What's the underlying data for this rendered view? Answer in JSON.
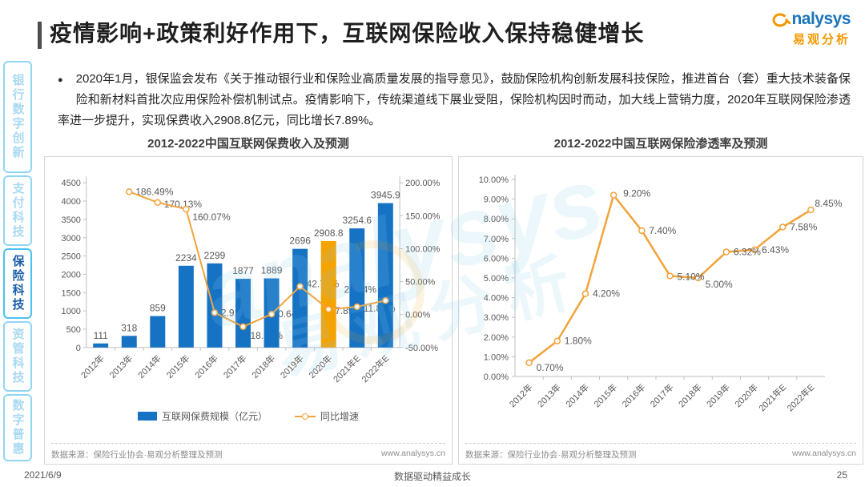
{
  "header": {
    "title": "疫情影响+政策利好作用下，互联网保险收入保持稳健增长",
    "logo": {
      "wordmark": "analysys",
      "subtext": "易观分析"
    }
  },
  "sidebar": {
    "items": [
      {
        "label": "银行数字创新",
        "active": false
      },
      {
        "label": "支付科技",
        "active": false
      },
      {
        "label": "保险科技",
        "active": true
      },
      {
        "label": "资管科技",
        "active": false
      },
      {
        "label": "数字普惠",
        "active": false
      }
    ]
  },
  "bullet": {
    "marker": "●",
    "text": "2020年1月，银保监会发布《关于推动银行业和保险业高质量发展的指导意见》，鼓励保险机构创新发展科技保险，推进首台（套）重大技术装备保险和新材料首批次应用保险补偿机制试点。疫情影响下，传统渠道线下展业受阻，保险机构因时而动，加大线上营销力度，2020年互联网保险渗透率进一步提升，实现保费收入2908.8亿元，同比增长7.89%。"
  },
  "chart_data": [
    {
      "type": "bar",
      "title": "2012-2022中国互联网保费收入及预测",
      "categories": [
        "2012年",
        "2013年",
        "2014年",
        "2015年",
        "2016年",
        "2017年",
        "2018年",
        "2019年",
        "2020年",
        "2021年E",
        "2022年E"
      ],
      "series": [
        {
          "name": "互联网保费规模（亿元）",
          "type": "bar",
          "values": [
            111,
            318,
            859,
            2234,
            2299,
            1877,
            1889,
            2696,
            2908.8,
            3254.6,
            3945.9
          ],
          "labels": [
            "111",
            "318",
            "859",
            "2234",
            "2299",
            "1877",
            "1889",
            "2696",
            "2908.8",
            "3254.6",
            "3945.9"
          ]
        },
        {
          "name": "同比增速",
          "type": "line",
          "values": [
            null,
            186.49,
            170.13,
            160.07,
            2.91,
            -18.36,
            0.64,
            42.72,
            7.89,
            11.89,
            21.24
          ],
          "labels": [
            "",
            "186.49%",
            "170.13%",
            "160.07%",
            "2.91%",
            "-18.36%",
            "0.64%",
            "42.72%",
            "7.89%",
            "11.89%",
            "21.24%"
          ]
        }
      ],
      "highlight_category": "2020年",
      "highlight_index": 8,
      "y_left": {
        "min": 0,
        "max": 4500,
        "step": 500
      },
      "y_right": {
        "min": -50,
        "max": 200,
        "step": 50,
        "tick_labels": [
          "-50.00%",
          "0.00%",
          "50.00%",
          "100.00%",
          "150.00%",
          "200.00%"
        ]
      },
      "legend_position": "bottom",
      "grid": false,
      "source": "数据来源：保险行业协会·易观分析整理及预测",
      "source_url": "www.analysys.cn"
    },
    {
      "type": "line",
      "title": "2012-2022中国互联网保险渗透率及预测",
      "categories": [
        "2012年",
        "2013年",
        "2014年",
        "2015年",
        "2016年",
        "2017年",
        "2018年",
        "2019年",
        "2020年",
        "2021年E",
        "2022年E"
      ],
      "series": [
        {
          "name": "互联网保险渗透率",
          "type": "line",
          "values": [
            0.7,
            1.8,
            4.2,
            9.2,
            7.4,
            5.1,
            5.0,
            6.32,
            6.43,
            7.58,
            8.45
          ],
          "labels": [
            "0.70%",
            "1.80%",
            "4.20%",
            "9.20%",
            "7.40%",
            "5.10%",
            "5.00%",
            "6.32%",
            "6.43%",
            "7.58%",
            "8.45%"
          ]
        }
      ],
      "y": {
        "min": 0,
        "max": 10,
        "step": 1,
        "tick_labels": [
          "0.00%",
          "1.00%",
          "2.00%",
          "3.00%",
          "4.00%",
          "5.00%",
          "6.00%",
          "7.00%",
          "8.00%",
          "9.00%",
          "10.00%"
        ]
      },
      "grid": false,
      "legend_position": "none",
      "source": "数据来源：保险行业协会·易观分析整理及预测",
      "source_url": "www.analysys.cn"
    }
  ],
  "colors": {
    "bar_blue": "#1673C4",
    "bar_highlight_orange": "#F5A300",
    "line_orange": "#F2A33C",
    "sidebar_active_blue": "#1B5FA8",
    "logo_blue": "#1A75BB",
    "logo_orange": "#F39800"
  },
  "footer": {
    "date": "2021/6/9",
    "slogan": "数据驱动精益成长",
    "page": "25"
  }
}
